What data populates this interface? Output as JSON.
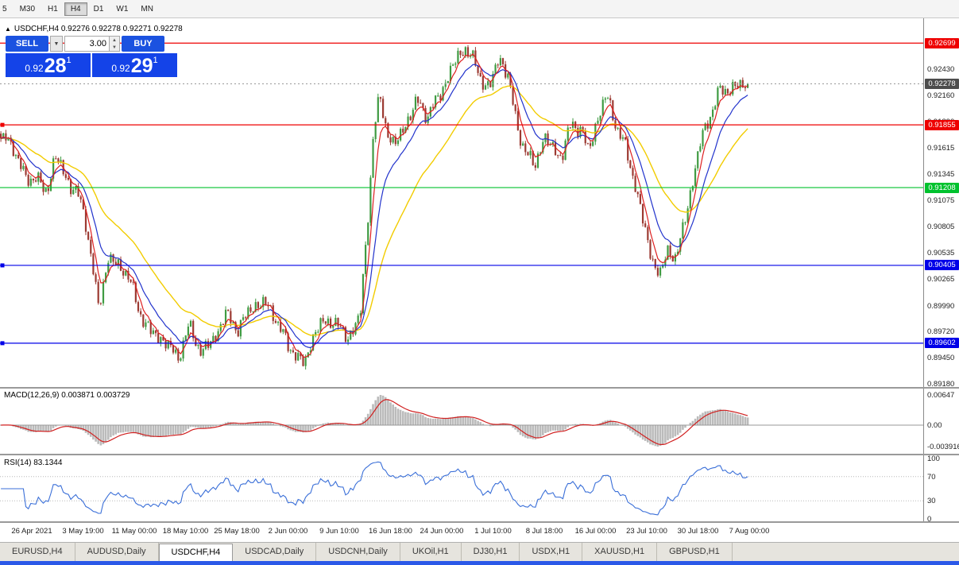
{
  "toolbar": {
    "timeframes": [
      "5",
      "M30",
      "H1",
      "H4",
      "D1",
      "W1",
      "MN"
    ],
    "active": "H4"
  },
  "quote_header": {
    "arrow": "▲",
    "text": "USDCHF,H4 0.92276 0.92278 0.92271 0.92278"
  },
  "trade_panel": {
    "sell_label": "SELL",
    "buy_label": "BUY",
    "volume": "3.00",
    "dropdown_icon": "▼",
    "spin_up": "▲",
    "spin_down": "▼",
    "sell_price": {
      "prefix": "0.92",
      "big": "28",
      "sup": "1"
    },
    "buy_price": {
      "prefix": "0.92",
      "big": "29",
      "sup": "1"
    }
  },
  "price_axis": {
    "labels": [
      "0.92430",
      "0.92160",
      "0.91890",
      "0.91615",
      "0.91345",
      "0.91075",
      "0.90805",
      "0.90535",
      "0.90265",
      "0.89990",
      "0.89720",
      "0.89450",
      "0.89180"
    ]
  },
  "macd": {
    "label": "MACD(12,26,9) 0.003871 0.003729",
    "axis_labels": [
      "0.00647",
      "0.00",
      "-0.003916"
    ]
  },
  "rsi": {
    "label": "RSI(14) 83.1344",
    "axis_labels": [
      "100",
      "70",
      "30",
      "0"
    ],
    "levels": [
      70,
      30
    ]
  },
  "time_axis": {
    "labels": [
      "26 Apr 2021",
      "3 May 19:00",
      "11 May 00:00",
      "18 May 10:00",
      "25 May 18:00",
      "2 Jun 00:00",
      "9 Jun 10:00",
      "16 Jun 18:00",
      "24 Jun 00:00",
      "1 Jul 10:00",
      "8 Jul 18:00",
      "16 Jul 00:00",
      "23 Jul 10:00",
      "30 Jul 18:00",
      "7 Aug 00:00"
    ]
  },
  "tabs": {
    "active": "USDCHF,H4",
    "items": [
      "EURUSD,H4",
      "AUDUSD,Daily",
      "USDCHF,H4",
      "USDCAD,Daily",
      "USDCNH,Daily",
      "UKOil,H1",
      "DJ30,H1",
      "USDX,H1",
      "XAUUSD,H1",
      "GBPUSD,H1"
    ]
  },
  "colors": {
    "up": "#3f9b42",
    "down": "#9c3a32",
    "ma_fast": "#dd2020",
    "ma_mid": "#2233cc",
    "ma_slow": "#f2cc00",
    "macd_hist": "#bbbbbb",
    "macd_signal": "#d02020",
    "rsi_line": "#3a6fd8",
    "current_badge": "#4d4d4d",
    "accent_blue": "#1443e8"
  },
  "chart_data": {
    "type": "candlestick",
    "symbol": "USDCHF",
    "timeframe": "H4",
    "title": "USDCHF,H4",
    "current_price": 0.92278,
    "quote_ohlc": [
      0.92276,
      0.92278,
      0.92271,
      0.92278
    ],
    "y_range": [
      0.8915,
      0.92955
    ],
    "x_labels": [
      "26 Apr 2021",
      "3 May 19:00",
      "11 May 00:00",
      "18 May 10:00",
      "25 May 18:00",
      "2 Jun 00:00",
      "9 Jun 10:00",
      "16 Jun 18:00",
      "24 Jun 00:00",
      "1 Jul 10:00",
      "8 Jul 18:00",
      "16 Jul 00:00",
      "23 Jul 10:00",
      "30 Jul 18:00",
      "7 Aug 00:00"
    ],
    "hlines": [
      {
        "price": 0.92699,
        "color": "#ee0000",
        "handle": false
      },
      {
        "price": 0.91855,
        "color": "#ee0000",
        "handle": true
      },
      {
        "price": 0.91208,
        "color": "#00c22e",
        "handle": false
      },
      {
        "price": 0.90405,
        "color": "#0000e8",
        "handle": true
      },
      {
        "price": 0.89602,
        "color": "#0000e8",
        "handle": true
      }
    ],
    "price_keyframes": [
      [
        0.0,
        0.9168
      ],
      [
        0.008,
        0.9178
      ],
      [
        0.02,
        0.9152
      ],
      [
        0.034,
        0.9132
      ],
      [
        0.048,
        0.9128
      ],
      [
        0.062,
        0.9118
      ],
      [
        0.073,
        0.9152
      ],
      [
        0.082,
        0.9142
      ],
      [
        0.094,
        0.912
      ],
      [
        0.104,
        0.9112
      ],
      [
        0.112,
        0.9095
      ],
      [
        0.122,
        0.904
      ],
      [
        0.131,
        0.8998
      ],
      [
        0.144,
        0.9048
      ],
      [
        0.157,
        0.904
      ],
      [
        0.17,
        0.9032
      ],
      [
        0.184,
        0.8995
      ],
      [
        0.2,
        0.8972
      ],
      [
        0.22,
        0.8962
      ],
      [
        0.237,
        0.8945
      ],
      [
        0.252,
        0.8978
      ],
      [
        0.267,
        0.8952
      ],
      [
        0.284,
        0.8962
      ],
      [
        0.3,
        0.899
      ],
      [
        0.317,
        0.8975
      ],
      [
        0.337,
        0.8998
      ],
      [
        0.352,
        0.9002
      ],
      [
        0.367,
        0.8988
      ],
      [
        0.384,
        0.8958
      ],
      [
        0.407,
        0.8938
      ],
      [
        0.421,
        0.8975
      ],
      [
        0.444,
        0.8985
      ],
      [
        0.464,
        0.8965
      ],
      [
        0.481,
        0.8988
      ],
      [
        0.491,
        0.9085
      ],
      [
        0.499,
        0.918
      ],
      [
        0.507,
        0.9213
      ],
      [
        0.517,
        0.918
      ],
      [
        0.527,
        0.9163
      ],
      [
        0.541,
        0.9185
      ],
      [
        0.557,
        0.921
      ],
      [
        0.571,
        0.9195
      ],
      [
        0.587,
        0.9215
      ],
      [
        0.604,
        0.9245
      ],
      [
        0.621,
        0.9266
      ],
      [
        0.631,
        0.9254
      ],
      [
        0.644,
        0.9232
      ],
      [
        0.654,
        0.9222
      ],
      [
        0.667,
        0.9257
      ],
      [
        0.679,
        0.9235
      ],
      [
        0.691,
        0.9185
      ],
      [
        0.702,
        0.9158
      ],
      [
        0.714,
        0.9143
      ],
      [
        0.727,
        0.9172
      ],
      [
        0.739,
        0.9162
      ],
      [
        0.751,
        0.9152
      ],
      [
        0.764,
        0.9188
      ],
      [
        0.777,
        0.918
      ],
      [
        0.787,
        0.9158
      ],
      [
        0.799,
        0.9192
      ],
      [
        0.811,
        0.9216
      ],
      [
        0.824,
        0.9185
      ],
      [
        0.837,
        0.916
      ],
      [
        0.849,
        0.9125
      ],
      [
        0.861,
        0.9082
      ],
      [
        0.871,
        0.9048
      ],
      [
        0.884,
        0.903
      ],
      [
        0.894,
        0.906
      ],
      [
        0.904,
        0.9046
      ],
      [
        0.917,
        0.9092
      ],
      [
        0.938,
        0.9172
      ],
      [
        0.962,
        0.922
      ],
      [
        1.0,
        0.92278
      ]
    ],
    "indicators": [
      {
        "name": "MACD",
        "params": "12,26,9",
        "values": [
          0.003871,
          0.003729
        ],
        "y_axis": [
          0.00647,
          0.0,
          -0.003916
        ]
      },
      {
        "name": "RSI",
        "params": "14",
        "value": 83.1344,
        "y_axis": [
          100,
          70,
          30,
          0
        ],
        "levels": [
          70,
          30
        ]
      }
    ]
  }
}
